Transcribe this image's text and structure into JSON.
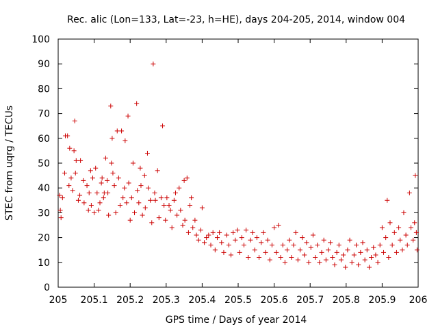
{
  "chart_data": {
    "type": "scatter",
    "title": "Rec. alic (Lon=133, Lat=-23, h=HE), days 204-205, 2014, window 004",
    "xlabel": "GPS time / Days of year 2014",
    "ylabel": "STEC from uqrg / TECUs",
    "xlim": [
      205,
      206
    ],
    "ylim": [
      0,
      100
    ],
    "xticks": [
      205,
      205.1,
      205.2,
      205.3,
      205.4,
      205.5,
      205.6,
      205.7,
      205.8,
      205.9,
      206
    ],
    "xtick_labels": [
      "205",
      "205.1",
      "205.2",
      "205.3",
      "205.4",
      "205.5",
      "205.6",
      "205.7",
      "205.8",
      "205.9",
      "206"
    ],
    "yticks": [
      0,
      10,
      20,
      30,
      40,
      50,
      60,
      70,
      80,
      90,
      100
    ],
    "ytick_labels": [
      "0",
      "10",
      "20",
      "30",
      "40",
      "50",
      "60",
      "70",
      "80",
      "90",
      "100"
    ],
    "grid": false,
    "marker": "+",
    "color": "#cc0000",
    "series": [
      {
        "name": "STEC",
        "points": [
          [
            205.004,
            37
          ],
          [
            205.006,
            31
          ],
          [
            205.008,
            28
          ],
          [
            205.012,
            36
          ],
          [
            205.018,
            46
          ],
          [
            205.02,
            61
          ],
          [
            205.026,
            61
          ],
          [
            205.03,
            41
          ],
          [
            205.032,
            56
          ],
          [
            205.036,
            44
          ],
          [
            205.04,
            39
          ],
          [
            205.044,
            55
          ],
          [
            205.046,
            67
          ],
          [
            205.048,
            46
          ],
          [
            205.05,
            51
          ],
          [
            205.056,
            35
          ],
          [
            205.06,
            37
          ],
          [
            205.062,
            51
          ],
          [
            205.07,
            43
          ],
          [
            205.072,
            34
          ],
          [
            205.08,
            41
          ],
          [
            205.084,
            31
          ],
          [
            205.086,
            38
          ],
          [
            205.09,
            47
          ],
          [
            205.092,
            33
          ],
          [
            205.096,
            44
          ],
          [
            205.1,
            30
          ],
          [
            205.104,
            48
          ],
          [
            205.108,
            38
          ],
          [
            205.112,
            31
          ],
          [
            205.116,
            34
          ],
          [
            205.12,
            42
          ],
          [
            205.122,
            44
          ],
          [
            205.126,
            36
          ],
          [
            205.128,
            38
          ],
          [
            205.132,
            52
          ],
          [
            205.136,
            43
          ],
          [
            205.138,
            38
          ],
          [
            205.14,
            29
          ],
          [
            205.146,
            73
          ],
          [
            205.148,
            50
          ],
          [
            205.15,
            60
          ],
          [
            205.152,
            46
          ],
          [
            205.156,
            41
          ],
          [
            205.16,
            30
          ],
          [
            205.164,
            63
          ],
          [
            205.168,
            44
          ],
          [
            205.172,
            33
          ],
          [
            205.176,
            63
          ],
          [
            205.18,
            36
          ],
          [
            205.184,
            40
          ],
          [
            205.186,
            59
          ],
          [
            205.19,
            34
          ],
          [
            205.194,
            69
          ],
          [
            205.196,
            42
          ],
          [
            205.2,
            27
          ],
          [
            205.204,
            36
          ],
          [
            205.208,
            50
          ],
          [
            205.212,
            30
          ],
          [
            205.218,
            74
          ],
          [
            205.22,
            39
          ],
          [
            205.224,
            34
          ],
          [
            205.228,
            48
          ],
          [
            205.23,
            41
          ],
          [
            205.234,
            29
          ],
          [
            205.24,
            45
          ],
          [
            205.242,
            32
          ],
          [
            205.248,
            54
          ],
          [
            205.25,
            40
          ],
          [
            205.256,
            35
          ],
          [
            205.26,
            26
          ],
          [
            205.264,
            90
          ],
          [
            205.268,
            38
          ],
          [
            205.27,
            35
          ],
          [
            205.276,
            47
          ],
          [
            205.28,
            28
          ],
          [
            205.286,
            36
          ],
          [
            205.29,
            65
          ],
          [
            205.294,
            33
          ],
          [
            205.298,
            27
          ],
          [
            205.302,
            36
          ],
          [
            205.308,
            33
          ],
          [
            205.312,
            31
          ],
          [
            205.316,
            24
          ],
          [
            205.322,
            35
          ],
          [
            205.326,
            38
          ],
          [
            205.33,
            29
          ],
          [
            205.336,
            40
          ],
          [
            205.34,
            31
          ],
          [
            205.346,
            25
          ],
          [
            205.35,
            43
          ],
          [
            205.352,
            27
          ],
          [
            205.358,
            44
          ],
          [
            205.362,
            22
          ],
          [
            205.366,
            33
          ],
          [
            205.37,
            36
          ],
          [
            205.374,
            24
          ],
          [
            205.38,
            27
          ],
          [
            205.384,
            21
          ],
          [
            205.39,
            19
          ],
          [
            205.396,
            23
          ],
          [
            205.4,
            32
          ],
          [
            205.406,
            18
          ],
          [
            205.412,
            20
          ],
          [
            205.418,
            21
          ],
          [
            205.424,
            17
          ],
          [
            205.43,
            22
          ],
          [
            205.436,
            15
          ],
          [
            205.442,
            20
          ],
          [
            205.448,
            22
          ],
          [
            205.454,
            18
          ],
          [
            205.46,
            14
          ],
          [
            205.468,
            21
          ],
          [
            205.474,
            17
          ],
          [
            205.48,
            13
          ],
          [
            205.486,
            22
          ],
          [
            205.492,
            19
          ],
          [
            205.498,
            23
          ],
          [
            205.504,
            14
          ],
          [
            205.51,
            20
          ],
          [
            205.516,
            17
          ],
          [
            205.522,
            23
          ],
          [
            205.528,
            12
          ],
          [
            205.534,
            19
          ],
          [
            205.54,
            22
          ],
          [
            205.546,
            15
          ],
          [
            205.552,
            20
          ],
          [
            205.558,
            12
          ],
          [
            205.564,
            18
          ],
          [
            205.57,
            22
          ],
          [
            205.576,
            14
          ],
          [
            205.582,
            19
          ],
          [
            205.588,
            11
          ],
          [
            205.594,
            17
          ],
          [
            205.6,
            24
          ],
          [
            205.606,
            14
          ],
          [
            205.612,
            25
          ],
          [
            205.618,
            12
          ],
          [
            205.624,
            17
          ],
          [
            205.63,
            10
          ],
          [
            205.636,
            15
          ],
          [
            205.642,
            19
          ],
          [
            205.648,
            12
          ],
          [
            205.654,
            17
          ],
          [
            205.66,
            22
          ],
          [
            205.666,
            11
          ],
          [
            205.672,
            15
          ],
          [
            205.678,
            20
          ],
          [
            205.684,
            13
          ],
          [
            205.69,
            18
          ],
          [
            205.696,
            10
          ],
          [
            205.702,
            16
          ],
          [
            205.708,
            21
          ],
          [
            205.714,
            12
          ],
          [
            205.72,
            17
          ],
          [
            205.726,
            10
          ],
          [
            205.732,
            14
          ],
          [
            205.738,
            19
          ],
          [
            205.744,
            11
          ],
          [
            205.75,
            15
          ],
          [
            205.756,
            18
          ],
          [
            205.762,
            12
          ],
          [
            205.768,
            9
          ],
          [
            205.774,
            14
          ],
          [
            205.78,
            17
          ],
          [
            205.786,
            11
          ],
          [
            205.792,
            13
          ],
          [
            205.798,
            8
          ],
          [
            205.804,
            15
          ],
          [
            205.81,
            19
          ],
          [
            205.816,
            10
          ],
          [
            205.822,
            13
          ],
          [
            205.828,
            17
          ],
          [
            205.834,
            9
          ],
          [
            205.84,
            14
          ],
          [
            205.846,
            18
          ],
          [
            205.852,
            11
          ],
          [
            205.858,
            15
          ],
          [
            205.864,
            8
          ],
          [
            205.87,
            12
          ],
          [
            205.876,
            16
          ],
          [
            205.882,
            13
          ],
          [
            205.888,
            10
          ],
          [
            205.894,
            17
          ],
          [
            205.9,
            24
          ],
          [
            205.904,
            14
          ],
          [
            205.91,
            20
          ],
          [
            205.914,
            35
          ],
          [
            205.918,
            12
          ],
          [
            205.922,
            26
          ],
          [
            205.928,
            17
          ],
          [
            205.934,
            22
          ],
          [
            205.94,
            14
          ],
          [
            205.946,
            24
          ],
          [
            205.95,
            19
          ],
          [
            205.956,
            15
          ],
          [
            205.96,
            30
          ],
          [
            205.966,
            21
          ],
          [
            205.97,
            17
          ],
          [
            205.976,
            38
          ],
          [
            205.98,
            24
          ],
          [
            205.986,
            19
          ],
          [
            205.99,
            26
          ],
          [
            205.992,
            45
          ],
          [
            205.995,
            22
          ],
          [
            205.997,
            15
          ]
        ]
      }
    ]
  }
}
